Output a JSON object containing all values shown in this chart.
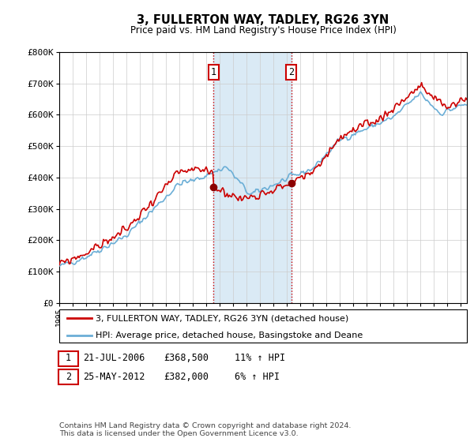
{
  "title": "3, FULLERTON WAY, TADLEY, RG26 3YN",
  "subtitle": "Price paid vs. HM Land Registry's House Price Index (HPI)",
  "ylabel_ticks": [
    "£0",
    "£100K",
    "£200K",
    "£300K",
    "£400K",
    "£500K",
    "£600K",
    "£700K",
    "£800K"
  ],
  "ylim": [
    0,
    800000
  ],
  "xlim_start": 1995.0,
  "xlim_end": 2025.5,
  "sale1_x": 2006.55,
  "sale1_y": 368500,
  "sale2_x": 2012.37,
  "sale2_y": 382000,
  "shaded_x1": 2006.55,
  "shaded_x2": 2012.37,
  "legend_line1": "3, FULLERTON WAY, TADLEY, RG26 3YN (detached house)",
  "legend_line2": "HPI: Average price, detached house, Basingstoke and Deane",
  "table_row1": [
    "1",
    "21-JUL-2006",
    "£368,500",
    "11% ↑ HPI"
  ],
  "table_row2": [
    "2",
    "25-MAY-2012",
    "£382,000",
    "6% ↑ HPI"
  ],
  "footnote": "Contains HM Land Registry data © Crown copyright and database right 2024.\nThis data is licensed under the Open Government Licence v3.0.",
  "hpi_color": "#6baed6",
  "price_color": "#cc0000",
  "shade_color": "#daeaf5",
  "marker_color": "#8B0000",
  "grid_color": "#cccccc",
  "n_points": 370
}
